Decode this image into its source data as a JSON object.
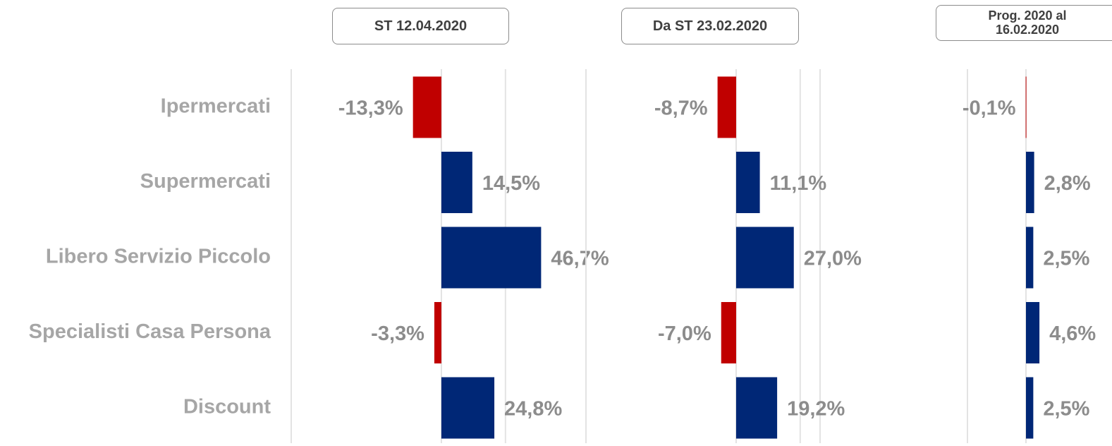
{
  "chart_data": {
    "type": "bar",
    "orientation": "horizontal",
    "categories": [
      "Ipermercati",
      "Supermercati",
      "Libero Servizio Piccolo",
      "Specialisti Casa Persona",
      "Discount"
    ],
    "color": "#002776",
    "negative_color": "#c00000",
    "grid": true,
    "series": [
      {
        "name": "ST 12.04.2020",
        "values": [
          -13.3,
          14.5,
          46.7,
          -3.3,
          24.8
        ],
        "value_labels": [
          "-13,3%",
          "14,5%",
          "46,7%",
          "-3,3%",
          "24,8%"
        ],
        "xlim": [
          -70.3,
          67.7
        ],
        "xticks": [
          0,
          30
        ]
      },
      {
        "name": "Da ST 23.02.2020",
        "values": [
          -8.7,
          11.1,
          27.0,
          -7.0,
          19.2
        ],
        "value_labels": [
          "-8,7%",
          "11,1%",
          "27,0%",
          "-7,0%",
          "19,2%"
        ],
        "xlim": [
          -70.3,
          39.3
        ],
        "xticks": [
          0,
          30
        ]
      },
      {
        "name": "Prog. 2020 al 16.02.2020",
        "values": [
          -0.1,
          2.8,
          2.5,
          4.6,
          2.5
        ],
        "value_labels": [
          "-0,1%",
          "2,8%",
          "2,5%",
          "4,6%",
          "2,5%"
        ],
        "xlim": [
          -20,
          29.4
        ],
        "xticks": [
          0
        ]
      }
    ]
  }
}
